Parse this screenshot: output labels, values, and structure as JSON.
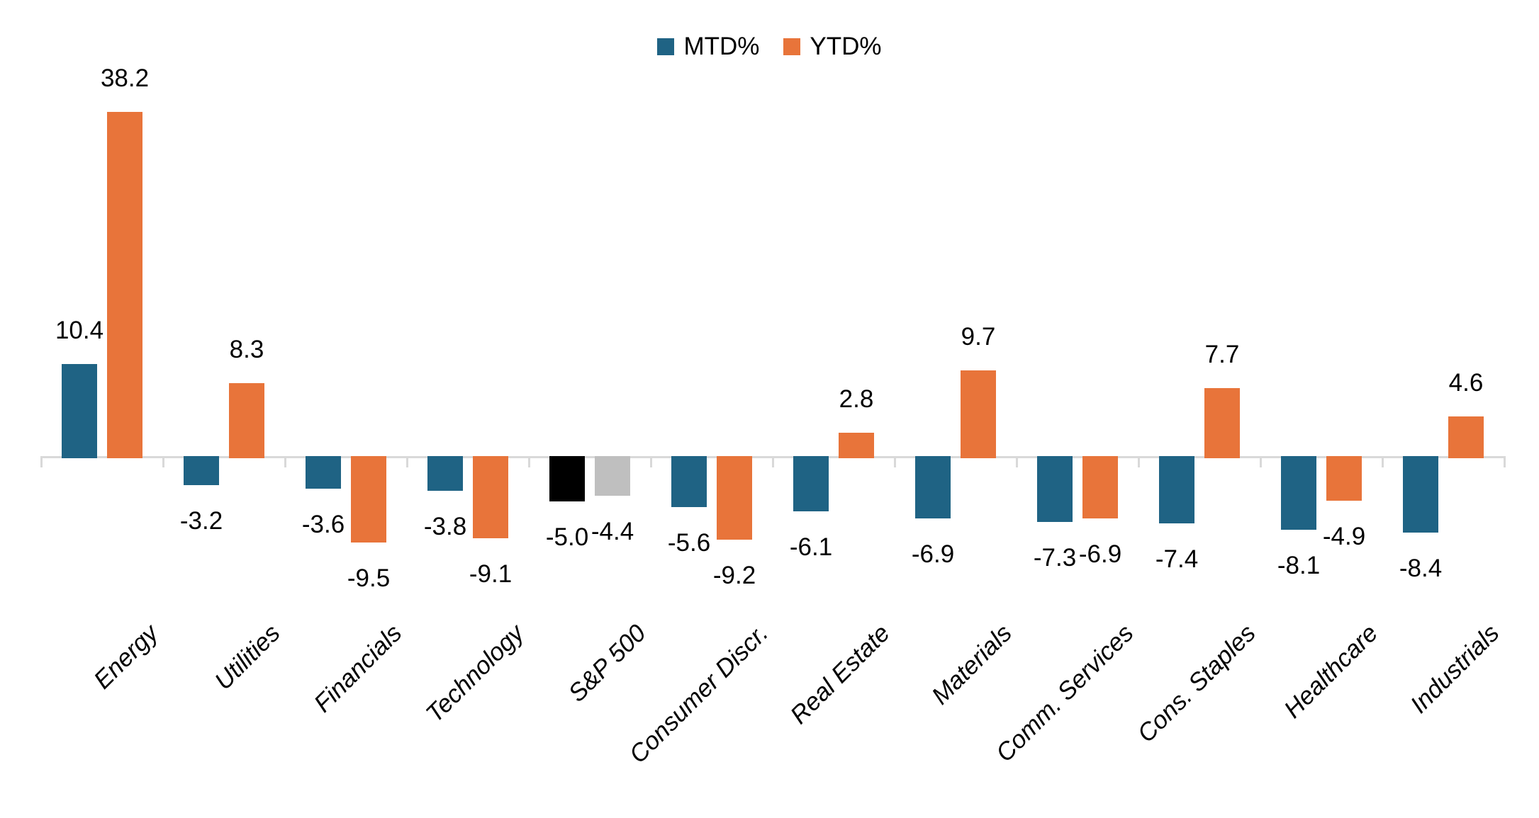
{
  "chart_data": {
    "type": "bar",
    "title": "",
    "categories": [
      "Energy",
      "Utilities",
      "Financials",
      "Technology",
      "S&P 500",
      "Consumer Discr.",
      "Real Estate",
      "Materials",
      "Comm. Services",
      "Cons. Staples",
      "Healthcare",
      "Industrials"
    ],
    "series": [
      {
        "name": "MTD%",
        "color": "#1F6384",
        "values": [
          10.4,
          -3.2,
          -3.6,
          -3.8,
          -5.0,
          -5.6,
          -6.1,
          -6.9,
          -7.3,
          -7.4,
          -8.1,
          -8.4
        ],
        "point_colors": {
          "4": "#000000"
        }
      },
      {
        "name": "YTD%",
        "color": "#E8743A",
        "values": [
          38.2,
          8.3,
          -9.5,
          -9.1,
          -4.4,
          -9.2,
          2.8,
          9.7,
          -6.9,
          7.7,
          -4.9,
          4.6
        ],
        "point_colors": {
          "4": "#BFBFBF"
        }
      }
    ],
    "legend": {
      "position": "top",
      "entries": [
        {
          "label": "MTD%",
          "color": "#1F6384"
        },
        {
          "label": "YTD%",
          "color": "#E8743A"
        }
      ]
    },
    "value_labels": {
      "show": true,
      "decimals": 1
    },
    "axis": {
      "baseline_color": "#D9D9D9",
      "tick_color": "#D9D9D9",
      "grid": false
    },
    "xlabel": "",
    "ylabel": "",
    "ylim": [
      -10,
      39
    ]
  }
}
